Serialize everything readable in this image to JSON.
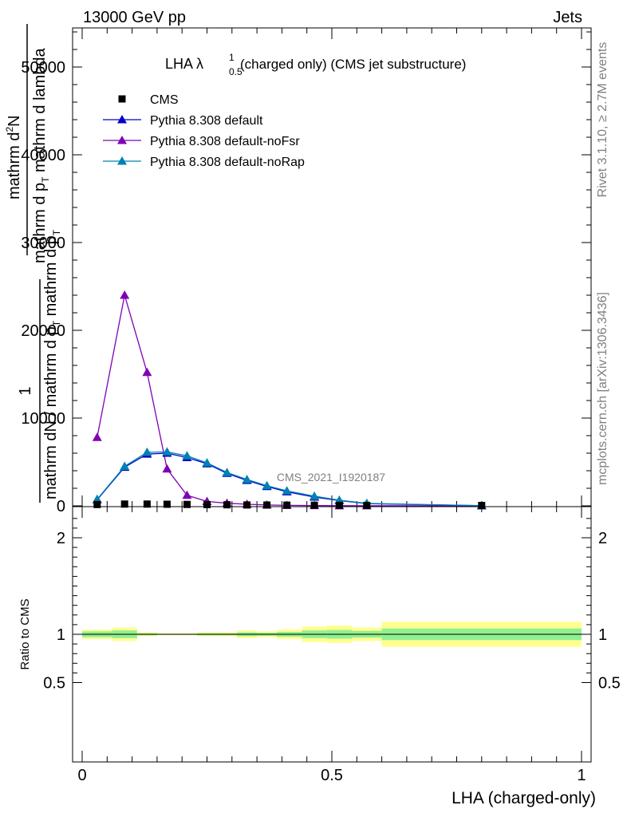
{
  "header": {
    "left": "13000 GeV pp",
    "right": "Jets"
  },
  "side_labels": {
    "rivet": "Rivet 3.1.10, ≥ 2.7M events",
    "mcplots": "mcplots.cern.ch [arXiv:1306.3436]"
  },
  "watermark": "CMS_2021_I1920187",
  "chart_data": [
    {
      "type": "line",
      "title": {
        "main": "LHA λ",
        "sup": "1",
        "sub": "0.5",
        "rest": "(charged only) (CMS jet substructure)"
      },
      "ylabel": {
        "numerator": "mathrm d",
        "superscript": "2",
        "numerator_end": "N",
        "denominator_1": "mathrm d p",
        "denominator_1_sub": "T",
        "denominator_2": " mathrm d lambda",
        "prefactor_top": "1",
        "prefactor_bottom": "mathrm dN / mathrm d p",
        "prefactor_bottom_sub": "T",
        "prefactor_bottom_end": " mathrm d p",
        "prefactor_bottom_end_sub": "T"
      },
      "xlim": [
        0,
        1
      ],
      "ylim": [
        0,
        54000
      ],
      "yticks": [
        0,
        10000,
        20000,
        30000,
        40000,
        50000
      ],
      "ytick_labels": [
        "0",
        "10000",
        "20000",
        "30000",
        "40000",
        "50000"
      ],
      "grid": false,
      "legend_placement": "top-left",
      "series": [
        {
          "name": "CMS",
          "color": "#000000",
          "marker": "square",
          "x": [
            0.03,
            0.085,
            0.13,
            0.17,
            0.21,
            0.25,
            0.29,
            0.33,
            0.37,
            0.41,
            0.465,
            0.515,
            0.57,
            0.8
          ],
          "y": [
            150,
            200,
            200,
            180,
            160,
            140,
            120,
            100,
            90,
            80,
            70,
            60,
            50,
            40
          ]
        },
        {
          "name": "Pythia 8.308 default",
          "color": "#0000c8",
          "marker": "triangle",
          "x": [
            0.03,
            0.085,
            0.13,
            0.17,
            0.21,
            0.25,
            0.29,
            0.33,
            0.37,
            0.41,
            0.465,
            0.515,
            0.57,
            0.8
          ],
          "y": [
            700,
            4400,
            5900,
            6000,
            5500,
            4800,
            3700,
            2900,
            2200,
            1600,
            1000,
            600,
            250,
            20
          ]
        },
        {
          "name": "Pythia 8.308 default-noFsr",
          "color": "#8000b4",
          "marker": "triangle",
          "x": [
            0.03,
            0.085,
            0.13,
            0.17,
            0.21,
            0.25,
            0.29,
            0.33,
            0.37,
            0.41,
            0.465,
            0.515,
            0.57,
            0.8
          ],
          "y": [
            7800,
            24000,
            15200,
            4200,
            1200,
            500,
            300,
            180,
            100,
            60,
            30,
            15,
            8,
            2
          ]
        },
        {
          "name": "Pythia 8.308 default-noRap",
          "color": "#0082b4",
          "marker": "triangle",
          "x": [
            0.03,
            0.085,
            0.13,
            0.17,
            0.21,
            0.25,
            0.29,
            0.33,
            0.37,
            0.41,
            0.465,
            0.515,
            0.57,
            0.8
          ],
          "y": [
            750,
            4500,
            6100,
            6150,
            5700,
            4900,
            3800,
            3000,
            2300,
            1700,
            1100,
            650,
            280,
            25
          ]
        }
      ]
    },
    {
      "type": "area",
      "ylabel": "Ratio to CMS",
      "xlabel": "LHA (charged-only)",
      "xlim": [
        0,
        1
      ],
      "ylim": [
        0.33,
        2.33
      ],
      "yticks": [
        0.5,
        1,
        2
      ],
      "ytick_labels": [
        "0.5",
        "1",
        "2"
      ],
      "xticks": [
        0,
        0.5,
        1
      ],
      "xtick_labels": [
        "0",
        "0.5",
        "1"
      ],
      "reference_line": 1,
      "bands": {
        "inner_color": "#90f090",
        "outer_color": "#ffff90",
        "bins": [
          {
            "lo": 0.0,
            "hi": 0.06,
            "inner": [
              0.97,
              1.03
            ],
            "outer": [
              0.95,
              1.05
            ]
          },
          {
            "lo": 0.06,
            "hi": 0.11,
            "inner": [
              0.96,
              1.04
            ],
            "outer": [
              0.93,
              1.07
            ]
          },
          {
            "lo": 0.11,
            "hi": 0.15,
            "inner": [
              0.99,
              1.01
            ],
            "outer": [
              0.98,
              1.02
            ]
          },
          {
            "lo": 0.15,
            "hi": 0.19,
            "inner": [
              0.995,
              1.005
            ],
            "outer": [
              0.99,
              1.01
            ]
          },
          {
            "lo": 0.19,
            "hi": 0.23,
            "inner": [
              0.995,
              1.005
            ],
            "outer": [
              0.99,
              1.01
            ]
          },
          {
            "lo": 0.23,
            "hi": 0.27,
            "inner": [
              0.99,
              1.01
            ],
            "outer": [
              0.98,
              1.02
            ]
          },
          {
            "lo": 0.27,
            "hi": 0.31,
            "inner": [
              0.99,
              1.01
            ],
            "outer": [
              0.98,
              1.02
            ]
          },
          {
            "lo": 0.31,
            "hi": 0.35,
            "inner": [
              0.98,
              1.02
            ],
            "outer": [
              0.96,
              1.04
            ]
          },
          {
            "lo": 0.35,
            "hi": 0.39,
            "inner": [
              0.985,
              1.015
            ],
            "outer": [
              0.97,
              1.03
            ]
          },
          {
            "lo": 0.39,
            "hi": 0.44,
            "inner": [
              0.975,
              1.025
            ],
            "outer": [
              0.95,
              1.05
            ]
          },
          {
            "lo": 0.44,
            "hi": 0.49,
            "inner": [
              0.96,
              1.04
            ],
            "outer": [
              0.92,
              1.08
            ]
          },
          {
            "lo": 0.49,
            "hi": 0.54,
            "inner": [
              0.955,
              1.045
            ],
            "outer": [
              0.91,
              1.09
            ]
          },
          {
            "lo": 0.54,
            "hi": 0.6,
            "inner": [
              0.965,
              1.035
            ],
            "outer": [
              0.93,
              1.07
            ]
          },
          {
            "lo": 0.6,
            "hi": 1.0,
            "inner": [
              0.94,
              1.06
            ],
            "outer": [
              0.87,
              1.13
            ]
          }
        ]
      }
    }
  ]
}
